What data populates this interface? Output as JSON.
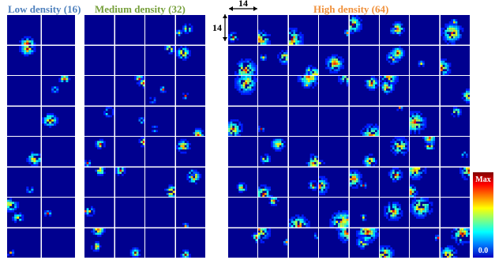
{
  "panels": {
    "low": {
      "title": "Low density (16)",
      "color": "#4f81bd",
      "rows": 8,
      "cols": 2
    },
    "medium": {
      "title": "Medium density (32)",
      "color": "#77a03c",
      "rows": 8,
      "cols": 4
    },
    "high": {
      "title": "High density (64)",
      "color": "#f0913c",
      "rows": 8,
      "cols": 8
    }
  },
  "patch_size": {
    "width_label": "14",
    "height_label": "14"
  },
  "colorbar": {
    "max_label": "Max",
    "min_label": "0.0",
    "colormap": "jet"
  },
  "colors": {
    "background_cell": "#00008f",
    "separator": "#ffffff"
  }
}
